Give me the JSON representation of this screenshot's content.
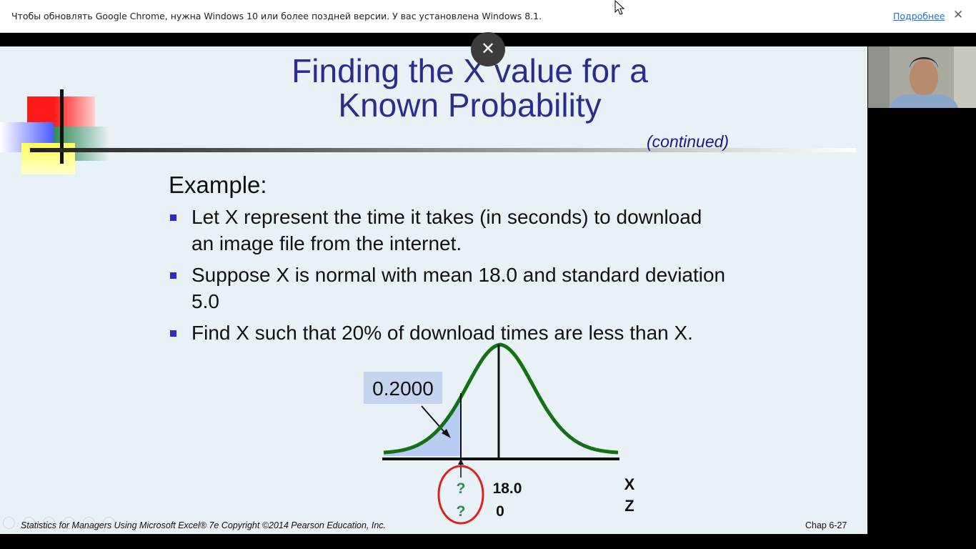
{
  "browser": {
    "infobar_message": "Чтобы обновлять Google Chrome, нужна Windows 10 или более поздней версии. У вас установлена Windows 8.1.",
    "infobar_link": "Подробнее",
    "infobar_close": "✕"
  },
  "overlay": {
    "close_glyph": "✕"
  },
  "slide": {
    "title_line1": "Finding the X value for a",
    "title_line2": "Known Probability",
    "subtitle": "(continued)",
    "example_heading": "Example:",
    "bullets": [
      "Let X represent the time it takes (in seconds) to download an image file from the internet.",
      "Suppose  X  is normal with mean 18.0 and standard deviation 5.0",
      "Find X such that 20% of download times are less than X."
    ],
    "figure": {
      "area_label": "0.2000",
      "mean_x": "18.0",
      "mean_z": "0",
      "unknown_x": "?",
      "unknown_z": "?",
      "axis_x_label": "X",
      "axis_z_label": "Z",
      "curve_color": "#137013",
      "shade_color": "#b9cdf4",
      "circle_color": "#e02020"
    },
    "footer": "Statistics for Managers Using Microsoft Excel® 7e Copyright ©2014 Pearson Education, Inc.",
    "page_label": "Chap 6-27"
  },
  "webcam": {
    "description_icon": "participant-video-icon"
  }
}
